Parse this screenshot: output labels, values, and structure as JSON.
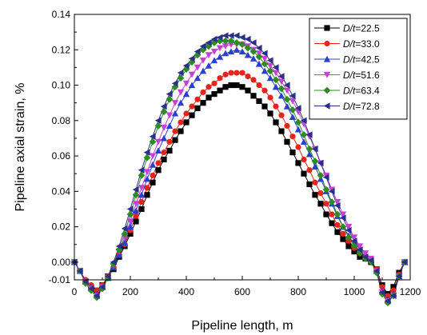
{
  "chart_data": {
    "type": "line",
    "title": "",
    "xlabel": "Pipeline length, m",
    "ylabel": "Pipeline axial strain, %",
    "xlim": [
      0,
      1200
    ],
    "ylim": [
      -0.01,
      0.14
    ],
    "xticks": [
      "0",
      "200",
      "400",
      "600",
      "800",
      "1000",
      "1200"
    ],
    "yticks": [
      "-0.01",
      "0.00",
      "0.02",
      "0.04",
      "0.06",
      "0.08",
      "0.10",
      "0.12",
      "0.14"
    ],
    "grid": false,
    "legend_position": "top-right",
    "x": [
      0,
      20,
      40,
      60,
      80,
      100,
      120,
      140,
      160,
      180,
      200,
      220,
      240,
      260,
      280,
      300,
      320,
      340,
      360,
      380,
      400,
      420,
      440,
      460,
      480,
      500,
      520,
      540,
      560,
      580,
      600,
      620,
      640,
      660,
      680,
      700,
      720,
      740,
      760,
      780,
      800,
      820,
      840,
      860,
      880,
      900,
      920,
      940,
      960,
      980,
      1000,
      1020,
      1040,
      1060,
      1080,
      1100,
      1120,
      1140,
      1160,
      1180
    ],
    "series": [
      {
        "name_prefix": "D/t",
        "name_value": "=22.5",
        "color": "#000000",
        "marker": "square",
        "values": [
          0.0,
          -0.005,
          -0.011,
          -0.014,
          -0.016,
          -0.013,
          -0.008,
          -0.004,
          0.003,
          0.009,
          0.016,
          0.023,
          0.03,
          0.038,
          0.045,
          0.052,
          0.058,
          0.063,
          0.069,
          0.074,
          0.079,
          0.083,
          0.087,
          0.09,
          0.093,
          0.095,
          0.097,
          0.099,
          0.1,
          0.1,
          0.099,
          0.097,
          0.094,
          0.091,
          0.088,
          0.084,
          0.079,
          0.074,
          0.068,
          0.062,
          0.056,
          0.05,
          0.044,
          0.038,
          0.033,
          0.027,
          0.022,
          0.017,
          0.013,
          0.009,
          0.006,
          0.003,
          0.002,
          0.0,
          -0.004,
          -0.013,
          -0.018,
          -0.014,
          -0.006,
          0.0
        ]
      },
      {
        "name_prefix": "D/t",
        "name_value": "=33.0",
        "color": "#e8231b",
        "marker": "circle",
        "values": [
          0.0,
          -0.005,
          -0.01,
          -0.013,
          -0.016,
          -0.013,
          -0.008,
          -0.003,
          0.004,
          0.01,
          0.018,
          0.026,
          0.034,
          0.042,
          0.049,
          0.056,
          0.062,
          0.068,
          0.074,
          0.079,
          0.084,
          0.088,
          0.092,
          0.096,
          0.099,
          0.101,
          0.104,
          0.106,
          0.107,
          0.107,
          0.107,
          0.105,
          0.103,
          0.1,
          0.097,
          0.093,
          0.088,
          0.083,
          0.077,
          0.071,
          0.065,
          0.058,
          0.052,
          0.045,
          0.039,
          0.033,
          0.027,
          0.021,
          0.016,
          0.012,
          0.008,
          0.005,
          0.003,
          0.001,
          -0.004,
          -0.014,
          -0.019,
          -0.016,
          -0.007,
          0.0
        ]
      },
      {
        "name_prefix": "D/t",
        "name_value": "=42.5",
        "color": "#2a3fd0",
        "marker": "triangle-up",
        "values": [
          0.0,
          -0.005,
          -0.011,
          -0.014,
          -0.018,
          -0.014,
          -0.009,
          -0.003,
          0.004,
          0.011,
          0.02,
          0.029,
          0.038,
          0.047,
          0.055,
          0.063,
          0.07,
          0.077,
          0.084,
          0.09,
          0.095,
          0.1,
          0.104,
          0.108,
          0.111,
          0.114,
          0.116,
          0.118,
          0.119,
          0.12,
          0.119,
          0.117,
          0.115,
          0.112,
          0.108,
          0.104,
          0.099,
          0.094,
          0.088,
          0.082,
          0.075,
          0.068,
          0.061,
          0.054,
          0.047,
          0.04,
          0.033,
          0.026,
          0.02,
          0.015,
          0.01,
          0.006,
          0.003,
          0.001,
          -0.005,
          -0.016,
          -0.021,
          -0.018,
          -0.008,
          0.0
        ]
      },
      {
        "name_prefix": "D/t",
        "name_value": "=51.6",
        "color": "#c83fd8",
        "marker": "triangle-down",
        "values": [
          0.0,
          -0.005,
          -0.011,
          -0.015,
          -0.019,
          -0.014,
          -0.009,
          -0.002,
          0.006,
          0.014,
          0.023,
          0.033,
          0.042,
          0.051,
          0.06,
          0.068,
          0.076,
          0.083,
          0.09,
          0.096,
          0.101,
          0.106,
          0.11,
          0.114,
          0.117,
          0.119,
          0.121,
          0.122,
          0.123,
          0.123,
          0.123,
          0.122,
          0.12,
          0.118,
          0.115,
          0.111,
          0.107,
          0.102,
          0.097,
          0.091,
          0.085,
          0.078,
          0.071,
          0.064,
          0.056,
          0.049,
          0.041,
          0.034,
          0.027,
          0.02,
          0.014,
          0.009,
          0.005,
          0.002,
          -0.005,
          -0.017,
          -0.022,
          -0.019,
          -0.008,
          0.0
        ]
      },
      {
        "name_prefix": "D/t",
        "name_value": "=63.4",
        "color": "#2e8b22",
        "marker": "diamond",
        "values": [
          0.0,
          -0.005,
          -0.012,
          -0.016,
          -0.02,
          -0.015,
          -0.009,
          -0.001,
          0.007,
          0.016,
          0.027,
          0.038,
          0.049,
          0.059,
          0.068,
          0.077,
          0.085,
          0.092,
          0.099,
          0.104,
          0.109,
          0.113,
          0.117,
          0.12,
          0.122,
          0.124,
          0.125,
          0.125,
          0.125,
          0.124,
          0.123,
          0.121,
          0.119,
          0.116,
          0.112,
          0.108,
          0.103,
          0.098,
          0.092,
          0.086,
          0.079,
          0.072,
          0.064,
          0.057,
          0.049,
          0.041,
          0.034,
          0.027,
          0.02,
          0.014,
          0.009,
          0.005,
          0.002,
          0.0,
          -0.006,
          -0.018,
          -0.023,
          -0.019,
          -0.008,
          0.0
        ]
      },
      {
        "name_prefix": "D/t",
        "name_value": "=72.8",
        "color": "#2a2f8a",
        "marker": "triangle-left",
        "values": [
          0.0,
          -0.005,
          -0.011,
          -0.015,
          -0.019,
          -0.014,
          -0.008,
          0.0,
          0.009,
          0.019,
          0.03,
          0.041,
          0.052,
          0.062,
          0.071,
          0.08,
          0.088,
          0.095,
          0.101,
          0.107,
          0.111,
          0.115,
          0.119,
          0.122,
          0.124,
          0.126,
          0.127,
          0.128,
          0.128,
          0.128,
          0.127,
          0.126,
          0.124,
          0.121,
          0.118,
          0.114,
          0.11,
          0.105,
          0.1,
          0.094,
          0.087,
          0.08,
          0.072,
          0.064,
          0.056,
          0.048,
          0.04,
          0.032,
          0.025,
          0.018,
          0.012,
          0.007,
          0.003,
          0.001,
          -0.005,
          -0.017,
          -0.022,
          -0.019,
          -0.008,
          0.0
        ]
      }
    ]
  }
}
